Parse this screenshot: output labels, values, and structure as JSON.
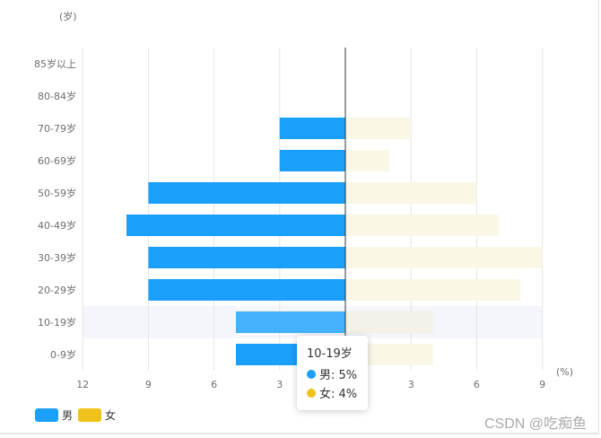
{
  "chart_data": {
    "type": "bar",
    "orientation": "horizontal",
    "title": "",
    "ylabel": "(岁)",
    "xlabel": "(%)",
    "categories": [
      "0-9岁",
      "10-19岁",
      "20-29岁",
      "30-39岁",
      "40-49岁",
      "50-59岁",
      "60-69岁",
      "70-79岁",
      "80-84岁",
      "85岁以上"
    ],
    "series": [
      {
        "name": "男",
        "color": "#1a9ffb",
        "highlight_color": "#44b2fc",
        "values": [
          5,
          5,
          9,
          9,
          10,
          9,
          3,
          3,
          0,
          0
        ]
      },
      {
        "name": "女",
        "color": "#fbf7e6",
        "highlight_color": "#f4f2e6",
        "legend_color": "#eec11b",
        "values": [
          4,
          4,
          8,
          9,
          7,
          6,
          2,
          3,
          0,
          0
        ]
      }
    ],
    "x_ticks": [
      "12",
      "9",
      "6",
      "3",
      "",
      "3",
      "6",
      "9"
    ],
    "xlim": [
      -12,
      9
    ],
    "highlighted_category": "10-19岁",
    "tooltip": {
      "title": "10-19岁",
      "rows": [
        "男: 5%",
        "女: 4%"
      ]
    }
  },
  "legend": {
    "items": [
      "男",
      "女"
    ]
  },
  "watermark": "CSDN @吃痴鱼",
  "colors": {
    "axis_line": "#333333",
    "grid": "#e5e5e5",
    "band": "#f4f6fb",
    "female_dot": "#eec11b",
    "male_dot": "#1a9ffb"
  }
}
